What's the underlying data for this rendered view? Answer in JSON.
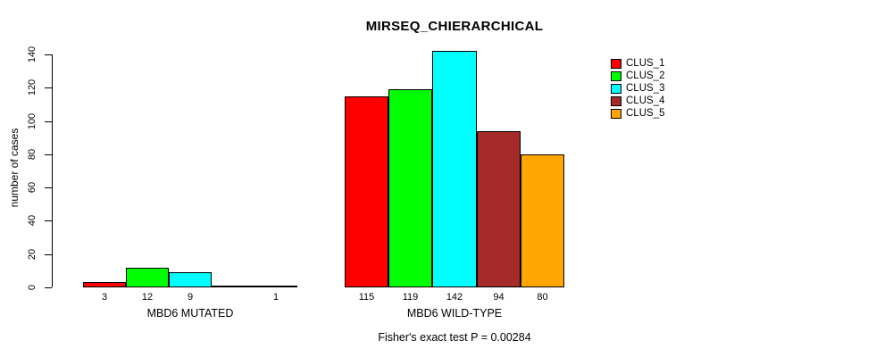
{
  "title": "MIRSEQ_CHIERARCHICAL",
  "subtitle": "Fisher's exact test P = 0.00284",
  "chart_data": {
    "type": "bar",
    "title": "MIRSEQ_CHIERARCHICAL",
    "ylabel": "number of cases",
    "xlabel": "",
    "ylim": [
      0,
      140
    ],
    "yticks": [
      0,
      20,
      40,
      60,
      80,
      100,
      120,
      140
    ],
    "grid": false,
    "legend_position": "right",
    "categories": [
      "MBD6 MUTATED",
      "MBD6 WILD-TYPE"
    ],
    "series": [
      {
        "name": "CLUS_1",
        "color": "#FF0000",
        "values": [
          3,
          115
        ]
      },
      {
        "name": "CLUS_2",
        "color": "#00FF00",
        "values": [
          12,
          119
        ]
      },
      {
        "name": "CLUS_3",
        "color": "#00FFFF",
        "values": [
          9,
          142
        ]
      },
      {
        "name": "CLUS_4",
        "color": "#A52A2A",
        "values": [
          0,
          94
        ]
      },
      {
        "name": "CLUS_5",
        "color": "#FFA500",
        "values": [
          1,
          80
        ]
      }
    ],
    "groups": [
      {
        "label": "MBD6 MUTATED",
        "values": [
          3,
          12,
          9,
          0,
          1
        ],
        "bar_labels": [
          "3",
          "12",
          "9",
          "",
          "1"
        ]
      },
      {
        "label": "MBD6 WILD-TYPE",
        "values": [
          115,
          119,
          142,
          94,
          80
        ],
        "bar_labels": [
          "115",
          "119",
          "142",
          "94",
          "80"
        ]
      }
    ],
    "series_colors": [
      "#FF0000",
      "#00FF00",
      "#00FFFF",
      "#A52A2A",
      "#FFA500"
    ],
    "legend": [
      {
        "label": "CLUS_1",
        "color": "#FF0000"
      },
      {
        "label": "CLUS_2",
        "color": "#00FF00"
      },
      {
        "label": "CLUS_3",
        "color": "#00FFFF"
      },
      {
        "label": "CLUS_4",
        "color": "#A52A2A"
      },
      {
        "label": "CLUS_5",
        "color": "#FFA500"
      }
    ],
    "annotation": "Fisher's exact test P = 0.00284"
  }
}
